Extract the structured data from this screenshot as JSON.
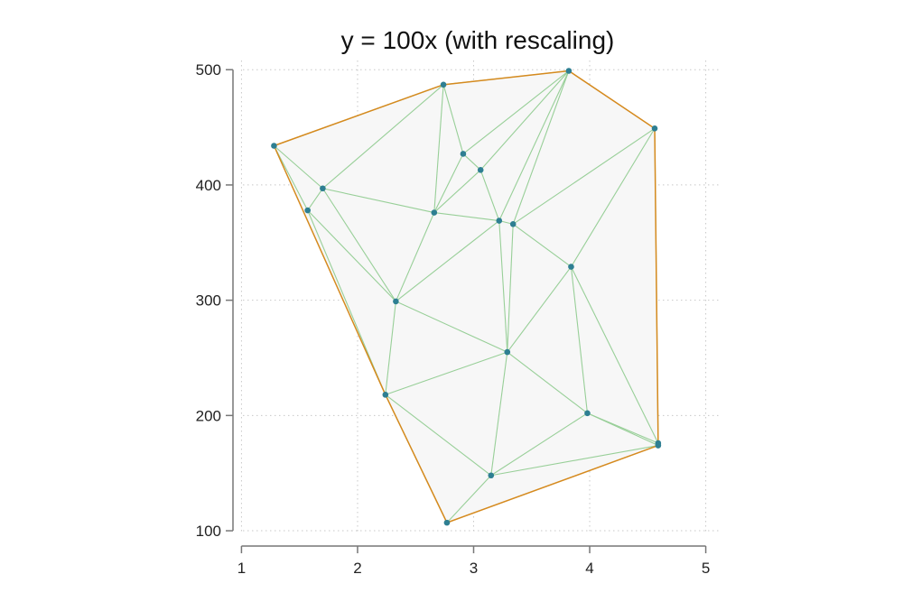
{
  "chart_data": {
    "type": "scatter",
    "title": "y = 100x (with rescaling)",
    "xlabel": "",
    "ylabel": "",
    "xlim": [
      0.95,
      5.05
    ],
    "ylim": [
      93,
      508
    ],
    "x_ticks": [
      1,
      2,
      3,
      4,
      5
    ],
    "y_ticks": [
      100,
      200,
      300,
      400,
      500
    ],
    "grid": true,
    "colors": {
      "points": "#2e7f92",
      "hull": "#d58a1e",
      "triangulation": "#98cf98",
      "hull_fill": "#f7f7f7"
    },
    "points": [
      {
        "x": 1.28,
        "y": 434
      },
      {
        "x": 1.7,
        "y": 397
      },
      {
        "x": 1.57,
        "y": 378
      },
      {
        "x": 2.74,
        "y": 487
      },
      {
        "x": 3.82,
        "y": 499
      },
      {
        "x": 4.56,
        "y": 449
      },
      {
        "x": 2.91,
        "y": 427
      },
      {
        "x": 3.06,
        "y": 413
      },
      {
        "x": 2.66,
        "y": 376
      },
      {
        "x": 3.22,
        "y": 369
      },
      {
        "x": 3.34,
        "y": 366
      },
      {
        "x": 2.33,
        "y": 299
      },
      {
        "x": 3.84,
        "y": 329
      },
      {
        "x": 3.29,
        "y": 255
      },
      {
        "x": 2.24,
        "y": 218
      },
      {
        "x": 3.98,
        "y": 202
      },
      {
        "x": 4.59,
        "y": 176
      },
      {
        "x": 4.59,
        "y": 174
      },
      {
        "x": 3.15,
        "y": 148
      },
      {
        "x": 2.77,
        "y": 107
      }
    ],
    "hull": [
      0,
      3,
      4,
      5,
      16,
      17,
      19,
      14
    ],
    "triangulation_edges": [
      [
        0,
        1
      ],
      [
        0,
        2
      ],
      [
        1,
        2
      ],
      [
        0,
        3
      ],
      [
        1,
        3
      ],
      [
        1,
        8
      ],
      [
        1,
        11
      ],
      [
        2,
        11
      ],
      [
        2,
        14
      ],
      [
        3,
        6
      ],
      [
        3,
        8
      ],
      [
        3,
        4
      ],
      [
        6,
        4
      ],
      [
        6,
        8
      ],
      [
        6,
        7
      ],
      [
        7,
        4
      ],
      [
        7,
        8
      ],
      [
        7,
        9
      ],
      [
        9,
        4
      ],
      [
        10,
        4
      ],
      [
        10,
        5
      ],
      [
        9,
        10
      ],
      [
        8,
        9
      ],
      [
        8,
        11
      ],
      [
        9,
        11
      ],
      [
        9,
        13
      ],
      [
        10,
        13
      ],
      [
        10,
        12
      ],
      [
        5,
        12
      ],
      [
        5,
        16
      ],
      [
        12,
        13
      ],
      [
        12,
        15
      ],
      [
        12,
        16
      ],
      [
        13,
        15
      ],
      [
        11,
        13
      ],
      [
        11,
        14
      ],
      [
        13,
        14
      ],
      [
        13,
        18
      ],
      [
        14,
        18
      ],
      [
        14,
        19
      ],
      [
        18,
        19
      ],
      [
        15,
        18
      ],
      [
        15,
        16
      ],
      [
        15,
        17
      ],
      [
        18,
        17
      ],
      [
        16,
        17
      ]
    ]
  }
}
